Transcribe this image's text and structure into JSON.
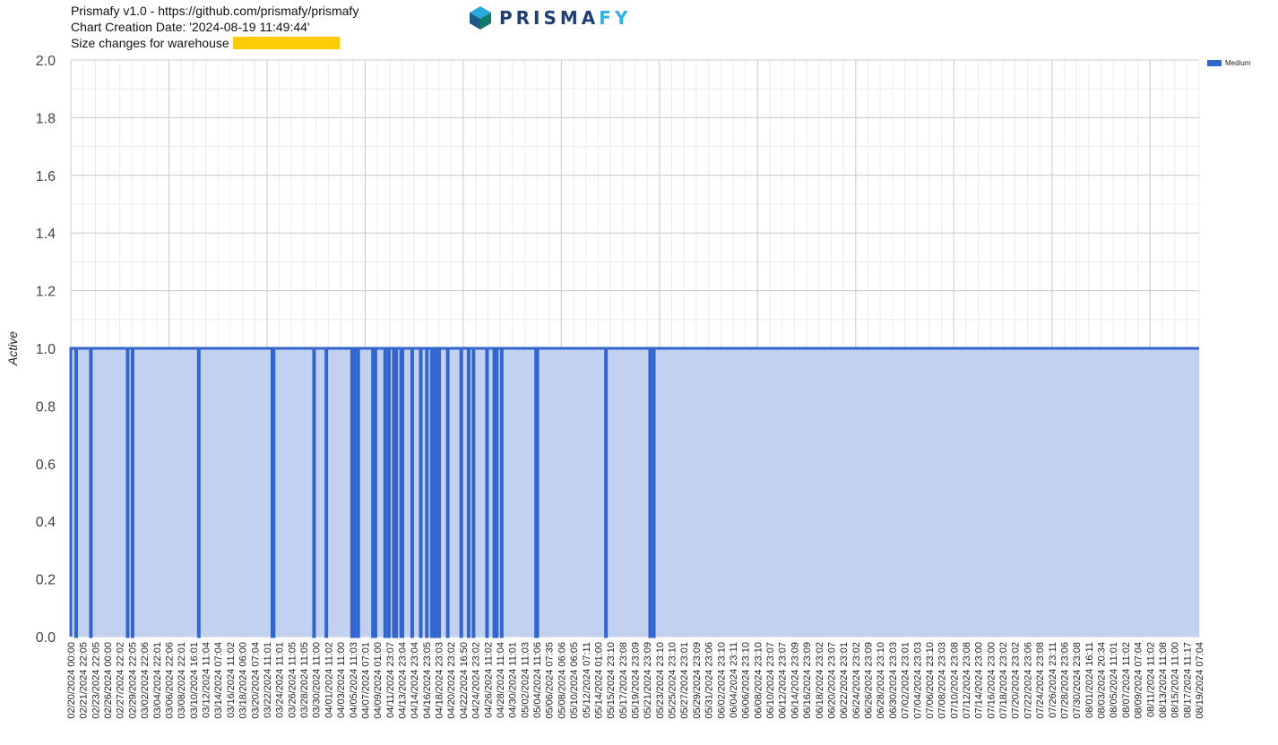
{
  "header": {
    "line1": "Prismafy v1.0 - https://github.com/prismafy/prismafy",
    "line2": "Chart Creation Date: '2024-08-19 11:49:44'",
    "line3": "Size changes for warehouse",
    "redaction_color": "#ffcc00"
  },
  "logo": {
    "text_main": "PRISMA",
    "text_accent": "FY",
    "icon": "prism-cube-icon",
    "color_main": "#1f3f73",
    "color_accent": "#2db3e6"
  },
  "legend": {
    "label": "Medium",
    "color": "#3366cc"
  },
  "chart_data": {
    "type": "area",
    "title": "Size changes for warehouse",
    "ylabel": "Active",
    "xlabel": "",
    "ylim": [
      0,
      2
    ],
    "yticks": [
      "0.0",
      "0.2",
      "0.4",
      "0.6",
      "0.8",
      "1.0",
      "1.2",
      "1.4",
      "1.6",
      "1.8",
      "2.0"
    ],
    "x_start": "02/20/2024 00:00",
    "x_end": "08/19/2024 07:04",
    "x_tick_labels": [
      "02/20/2024 00:00",
      "02/21/2024 22:05",
      "02/23/2024 22:05",
      "02/26/2024 00:00",
      "02/27/2024 22:02",
      "02/29/2024 22:05",
      "03/02/2024 22:06",
      "03/04/2024 22:01",
      "03/06/2024 22:06",
      "03/08/2024 22:01",
      "03/10/2024 16:01",
      "03/12/2024 11:04",
      "03/14/2024 07:04",
      "03/16/2024 11:02",
      "03/18/2024 06:00",
      "03/20/2024 07:04",
      "03/22/2024 11:01",
      "03/24/2024 11:01",
      "03/26/2024 11:05",
      "03/28/2024 11:05",
      "03/30/2024 11:00",
      "04/01/2024 11:02",
      "04/03/2024 11:00",
      "04/05/2024 11:03",
      "04/07/2024 07:01",
      "04/09/2024 01:00",
      "04/11/2024 23:07",
      "04/13/2024 23:04",
      "04/14/2024 23:04",
      "04/16/2024 23:05",
      "04/18/2024 23:03",
      "04/20/2024 23:02",
      "04/22/2024 16:50",
      "04/24/2024 23:02",
      "04/26/2024 11:02",
      "04/28/2024 11:04",
      "04/30/2024 11:01",
      "05/02/2024 11:03",
      "05/04/2024 11:06",
      "05/06/2024 07:35",
      "05/08/2024 06:06",
      "05/10/2024 06:05",
      "05/12/2024 07:11",
      "05/14/2024 01:00",
      "05/15/2024 23:10",
      "05/17/2024 23:08",
      "05/19/2024 23:09",
      "05/21/2024 23:09",
      "05/23/2024 23:10",
      "05/25/2024 23:10",
      "05/27/2024 23:01",
      "05/29/2024 23:09",
      "05/31/2024 23:06",
      "06/02/2024 23:10",
      "06/04/2024 23:11",
      "06/06/2024 23:10",
      "06/08/2024 23:10",
      "06/10/2024 23:07",
      "06/12/2024 23:07",
      "06/14/2024 23:09",
      "06/16/2024 23:09",
      "06/18/2024 23:02",
      "06/20/2024 23:07",
      "06/22/2024 23:01",
      "06/24/2024 23:02",
      "06/26/2024 23:09",
      "06/28/2024 23:10",
      "06/30/2024 23:03",
      "07/02/2024 23:01",
      "07/04/2024 23:03",
      "07/06/2024 23:10",
      "07/08/2024 23:03",
      "07/10/2024 23:08",
      "07/12/2024 23:08",
      "07/14/2024 23:00",
      "07/16/2024 23:00",
      "07/18/2024 23:02",
      "07/20/2024 23:02",
      "07/22/2024 23:06",
      "07/24/2024 23:08",
      "07/26/2024 23:11",
      "07/28/2024 23:06",
      "07/30/2024 23:08",
      "08/01/2024 16:11",
      "08/03/2024 20:34",
      "08/05/2024 11:01",
      "08/07/2024 11:02",
      "08/09/2024 07:04",
      "08/11/2024 11:02",
      "08/13/2024 11:08",
      "08/15/2024 11:00",
      "08/17/2024 11:17",
      "08/19/2024 07:04"
    ],
    "series": [
      {
        "name": "Medium",
        "color": "#3366cc",
        "fill": "#c2d1f0",
        "value": 1.0,
        "dips_at_tick": [
          0.4,
          1.6,
          4.6,
          5.0,
          10.4,
          16.4,
          16.5,
          19.8,
          20.8,
          22.9,
          23.1,
          23.4,
          24.6,
          24.8,
          25.6,
          25.9,
          26.3,
          26.5,
          26.9,
          27.0,
          27.8,
          28.5,
          29.0,
          29.4,
          29.7,
          30.0,
          30.7,
          31.8,
          32.4,
          32.8,
          33.9,
          34.5,
          34.7,
          35.1,
          37.9,
          38.0,
          43.6,
          47.2,
          47.5
        ]
      }
    ]
  }
}
